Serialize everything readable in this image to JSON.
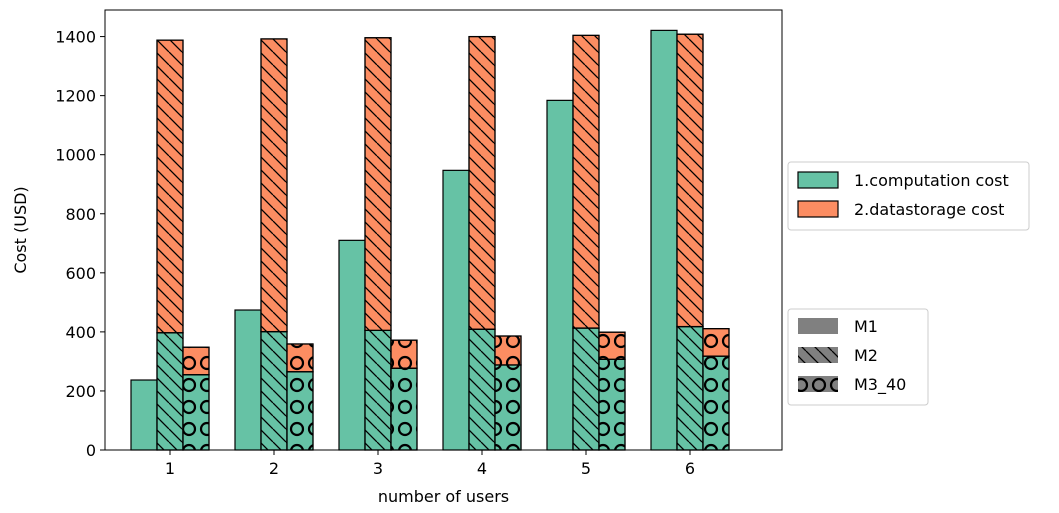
{
  "chart_data": {
    "type": "bar",
    "title": "",
    "xlabel": "number of users",
    "ylabel": "Cost (USD)",
    "categories": [
      "1",
      "2",
      "3",
      "4",
      "5",
      "6"
    ],
    "ylim": [
      0,
      1490
    ],
    "yticks": [
      0,
      200,
      400,
      600,
      800,
      1000,
      1200,
      1400
    ],
    "grid": false,
    "stacked_components": [
      {
        "name": "1.computation cost",
        "color": "#66c2a5"
      },
      {
        "name": "2.datastorage cost",
        "color": "#fc8d62"
      }
    ],
    "method_series": [
      {
        "name": "M1",
        "pattern": "solid",
        "computation": [
          237,
          474,
          710,
          947,
          1184,
          1421
        ],
        "datastorage": [
          0,
          0,
          0,
          0,
          0,
          0
        ]
      },
      {
        "name": "M2",
        "pattern": "diagonal",
        "computation": [
          397,
          401,
          405,
          409,
          413,
          418
        ],
        "datastorage": [
          991,
          991,
          991,
          991,
          991,
          990
        ]
      },
      {
        "name": "M3_40",
        "pattern": "circles",
        "computation": [
          255,
          265,
          277,
          288,
          307,
          318
        ],
        "datastorage": [
          93,
          94,
          95,
          98,
          92,
          93
        ]
      }
    ],
    "legends": {
      "cost_components": {
        "placement": "right-upper",
        "entries": [
          "1.computation cost",
          "2.datastorage cost"
        ]
      },
      "methods": {
        "placement": "right-lower",
        "entries": [
          "M1",
          "M2",
          "M3_40"
        ]
      }
    }
  }
}
